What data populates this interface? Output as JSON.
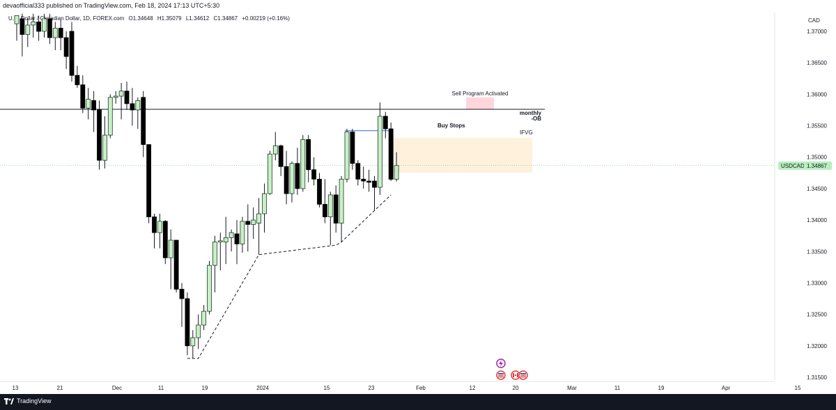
{
  "header": {
    "publisher_line": "devaofficial333 published on TradingView.com, Feb 18, 2024 17:13 UTC+5:30"
  },
  "legend": {
    "symbol_name": "U.S. Dollar / Canadian Dollar, 1D, FOREX.com",
    "open": "O1.34648",
    "high": "H1.35079",
    "low": "L1.34612",
    "close": "C1.34867",
    "change": "+0.00219 (+0.16%)"
  },
  "price_axis": {
    "currency": "CAD",
    "ticks": [
      "1.37000",
      "1.36500",
      "1.36000",
      "1.35500",
      "1.35000",
      "1.34500",
      "1.34000",
      "1.33500",
      "1.33000",
      "1.32500",
      "1.32000",
      "1.31500"
    ],
    "last_price_symbol": "USDCAD",
    "last_price_value": "1.34867"
  },
  "time_axis": {
    "ticks": [
      "13",
      "21",
      "Dec",
      "11",
      "19",
      "2024",
      "15",
      "23",
      "Feb",
      "12",
      "20",
      "Mar",
      "11",
      "19",
      "Apr",
      "15"
    ]
  },
  "annotations": {
    "sell_program": "Sell Program Activated",
    "monthly_ob": "monthly",
    "monthly_ob_suffix": "-OB",
    "buy_stops": "Buy Stops",
    "ifvg": "IFVG"
  },
  "footer": {
    "brand": "TradingView"
  },
  "colors": {
    "bull_body": "#c8f0c8",
    "bull_border": "#1e3a1e",
    "bear_body": "#000000",
    "last_price_bg": "#b8efbf",
    "ifvg_zone": "#fff1dc",
    "sell_zone": "#ffd6dc",
    "footer_bg": "#131722"
  },
  "chart_data": {
    "type": "candlestick",
    "symbol": "USDCAD",
    "interval": "1D",
    "ylim": [
      1.3138,
      1.3728
    ],
    "horizontal_line": 1.3576,
    "last_price": 1.34867,
    "ifvg_zone": [
      1.34755,
      1.35305
    ],
    "sell_zone": [
      1.35765,
      1.3595
    ],
    "buy_stops_level": 1.3542,
    "candles": [
      {
        "d": "Nov 13",
        "o": 1.3712,
        "h": 1.3725,
        "l": 1.3685,
        "c": 1.3725
      },
      {
        "d": "Nov 14",
        "o": 1.372,
        "h": 1.3728,
        "l": 1.366,
        "c": 1.3695
      },
      {
        "d": "Nov 15",
        "o": 1.3695,
        "h": 1.372,
        "l": 1.3675,
        "c": 1.371
      },
      {
        "d": "Nov 16",
        "o": 1.371,
        "h": 1.3728,
        "l": 1.369,
        "c": 1.3715
      },
      {
        "d": "Nov 17",
        "o": 1.3715,
        "h": 1.3725,
        "l": 1.3685,
        "c": 1.37
      },
      {
        "d": "Nov 20",
        "o": 1.37,
        "h": 1.3728,
        "l": 1.369,
        "c": 1.372
      },
      {
        "d": "Nov 21",
        "o": 1.372,
        "h": 1.3728,
        "l": 1.368,
        "c": 1.369
      },
      {
        "d": "Nov 22",
        "o": 1.369,
        "h": 1.3715,
        "l": 1.367,
        "c": 1.3705
      },
      {
        "d": "Nov 23",
        "o": 1.3705,
        "h": 1.3718,
        "l": 1.367,
        "c": 1.369
      },
      {
        "d": "Nov 24",
        "o": 1.369,
        "h": 1.37,
        "l": 1.364,
        "c": 1.366
      },
      {
        "d": "Nov 27",
        "o": 1.37,
        "h": 1.3715,
        "l": 1.362,
        "c": 1.363
      },
      {
        "d": "Nov 28",
        "o": 1.363,
        "h": 1.3645,
        "l": 1.361,
        "c": 1.3615
      },
      {
        "d": "Nov 29",
        "o": 1.3615,
        "h": 1.363,
        "l": 1.357,
        "c": 1.3578
      },
      {
        "d": "Nov 30",
        "o": 1.3578,
        "h": 1.361,
        "l": 1.356,
        "c": 1.3592
      },
      {
        "d": "Dec 1",
        "o": 1.359,
        "h": 1.3605,
        "l": 1.354,
        "c": 1.3575
      },
      {
        "d": "Dec 4",
        "o": 1.3575,
        "h": 1.359,
        "l": 1.348,
        "c": 1.3495
      },
      {
        "d": "Dec 5",
        "o": 1.3495,
        "h": 1.3565,
        "l": 1.3482,
        "c": 1.3535
      },
      {
        "d": "Dec 6",
        "o": 1.3535,
        "h": 1.36,
        "l": 1.353,
        "c": 1.3595
      },
      {
        "d": "Dec 7",
        "o": 1.3595,
        "h": 1.3605,
        "l": 1.3585,
        "c": 1.3597
      },
      {
        "d": "Dec 8",
        "o": 1.3597,
        "h": 1.3618,
        "l": 1.356,
        "c": 1.3605
      },
      {
        "d": "Dec 11",
        "o": 1.3605,
        "h": 1.362,
        "l": 1.3575,
        "c": 1.3585
      },
      {
        "d": "Dec 12",
        "o": 1.3585,
        "h": 1.361,
        "l": 1.355,
        "c": 1.3575
      },
      {
        "d": "Dec 13",
        "o": 1.3575,
        "h": 1.3595,
        "l": 1.3545,
        "c": 1.359
      },
      {
        "d": "Dec 14",
        "o": 1.3595,
        "h": 1.3605,
        "l": 1.35,
        "c": 1.352
      },
      {
        "d": "Dec 15",
        "o": 1.352,
        "h": 1.352,
        "l": 1.3395,
        "c": 1.3405
      },
      {
        "d": "Dec 18",
        "o": 1.3405,
        "h": 1.341,
        "l": 1.3355,
        "c": 1.338
      },
      {
        "d": "Dec 19",
        "o": 1.338,
        "h": 1.341,
        "l": 1.3355,
        "c": 1.3398
      },
      {
        "d": "Dec 20",
        "o": 1.3398,
        "h": 1.34,
        "l": 1.333,
        "c": 1.334
      },
      {
        "d": "Dec 21",
        "o": 1.334,
        "h": 1.3385,
        "l": 1.329,
        "c": 1.3368
      },
      {
        "d": "Dec 22",
        "o": 1.3368,
        "h": 1.3368,
        "l": 1.3285,
        "c": 1.329
      },
      {
        "d": "Dec 26",
        "o": 1.329,
        "h": 1.33,
        "l": 1.323,
        "c": 1.3275
      },
      {
        "d": "Dec 27",
        "o": 1.3275,
        "h": 1.3285,
        "l": 1.3185,
        "c": 1.32
      },
      {
        "d": "Dec 28",
        "o": 1.32,
        "h": 1.3225,
        "l": 1.318,
        "c": 1.3213
      },
      {
        "d": "Dec 29",
        "o": 1.3213,
        "h": 1.325,
        "l": 1.3195,
        "c": 1.3233
      },
      {
        "d": "Jan 1",
        "o": 1.3233,
        "h": 1.3265,
        "l": 1.3225,
        "c": 1.3255
      },
      {
        "d": "Jan 2",
        "o": 1.3255,
        "h": 1.3335,
        "l": 1.325,
        "c": 1.3328
      },
      {
        "d": "Jan 3",
        "o": 1.3328,
        "h": 1.3375,
        "l": 1.3285,
        "c": 1.3365
      },
      {
        "d": "Jan 4",
        "o": 1.3365,
        "h": 1.338,
        "l": 1.332,
        "c": 1.3367
      },
      {
        "d": "Jan 5",
        "o": 1.3365,
        "h": 1.3405,
        "l": 1.333,
        "c": 1.3372
      },
      {
        "d": "Jan 8",
        "o": 1.3372,
        "h": 1.3385,
        "l": 1.335,
        "c": 1.338
      },
      {
        "d": "Jan 9",
        "o": 1.3378,
        "h": 1.34,
        "l": 1.333,
        "c": 1.3362
      },
      {
        "d": "Jan 10",
        "o": 1.3362,
        "h": 1.3405,
        "l": 1.3348,
        "c": 1.3398
      },
      {
        "d": "Jan 11",
        "o": 1.3398,
        "h": 1.3425,
        "l": 1.335,
        "c": 1.3393
      },
      {
        "d": "Jan 12",
        "o": 1.3393,
        "h": 1.342,
        "l": 1.337,
        "c": 1.34
      },
      {
        "d": "Jan 15",
        "o": 1.3395,
        "h": 1.3435,
        "l": 1.3345,
        "c": 1.341
      },
      {
        "d": "Jan 16",
        "o": 1.341,
        "h": 1.3458,
        "l": 1.338,
        "c": 1.3442
      },
      {
        "d": "Jan 17",
        "o": 1.3442,
        "h": 1.351,
        "l": 1.344,
        "c": 1.3505
      },
      {
        "d": "Jan 18",
        "o": 1.3505,
        "h": 1.354,
        "l": 1.3495,
        "c": 1.3518
      },
      {
        "d": "Jan 19",
        "o": 1.3518,
        "h": 1.352,
        "l": 1.347,
        "c": 1.3485
      },
      {
        "d": "Jan 22",
        "o": 1.3485,
        "h": 1.351,
        "l": 1.3425,
        "c": 1.3442
      },
      {
        "d": "Jan 23",
        "o": 1.3442,
        "h": 1.3493,
        "l": 1.3428,
        "c": 1.349
      },
      {
        "d": "Jan 24",
        "o": 1.349,
        "h": 1.3515,
        "l": 1.344,
        "c": 1.345
      },
      {
        "d": "Jan 25",
        "o": 1.345,
        "h": 1.3535,
        "l": 1.3445,
        "c": 1.3528
      },
      {
        "d": "Jan 26",
        "o": 1.3528,
        "h": 1.3535,
        "l": 1.346,
        "c": 1.348
      },
      {
        "d": "Jan 29",
        "o": 1.348,
        "h": 1.35,
        "l": 1.3455,
        "c": 1.3465
      },
      {
        "d": "Jan 30",
        "o": 1.3465,
        "h": 1.3475,
        "l": 1.342,
        "c": 1.3425
      },
      {
        "d": "Jan 31",
        "o": 1.3425,
        "h": 1.3465,
        "l": 1.3395,
        "c": 1.3405
      },
      {
        "d": "Feb 1",
        "o": 1.3405,
        "h": 1.3445,
        "l": 1.336,
        "c": 1.344
      },
      {
        "d": "Feb 2",
        "o": 1.344,
        "h": 1.3455,
        "l": 1.338,
        "c": 1.3395
      },
      {
        "d": "Feb 5",
        "o": 1.3395,
        "h": 1.347,
        "l": 1.3365,
        "c": 1.3465
      },
      {
        "d": "Feb 6",
        "o": 1.3465,
        "h": 1.3545,
        "l": 1.346,
        "c": 1.354
      },
      {
        "d": "Feb 7",
        "o": 1.354,
        "h": 1.3545,
        "l": 1.348,
        "c": 1.349
      },
      {
        "d": "Feb 8",
        "o": 1.349,
        "h": 1.3495,
        "l": 1.3455,
        "c": 1.3465
      },
      {
        "d": "Feb 9",
        "o": 1.3465,
        "h": 1.3485,
        "l": 1.345,
        "c": 1.3462
      },
      {
        "d": "Feb 12",
        "o": 1.3462,
        "h": 1.348,
        "l": 1.3445,
        "c": 1.346
      },
      {
        "d": "Feb 13",
        "o": 1.3462,
        "h": 1.347,
        "l": 1.3415,
        "c": 1.3452
      },
      {
        "d": "Feb 14",
        "o": 1.3452,
        "h": 1.3587,
        "l": 1.344,
        "c": 1.3565
      },
      {
        "d": "Feb 15",
        "o": 1.3565,
        "h": 1.3572,
        "l": 1.353,
        "c": 1.3545
      },
      {
        "d": "Feb 16",
        "o": 1.3545,
        "h": 1.3555,
        "l": 1.3462,
        "c": 1.34648
      },
      {
        "d": "Feb 16",
        "o": 1.34648,
        "h": 1.35079,
        "l": 1.34612,
        "c": 1.34867
      }
    ],
    "dashed_trendline": [
      {
        "d": "Dec 27",
        "p": 1.318
      },
      {
        "d": "Dec 29",
        "p": 1.318
      },
      {
        "d": "Jan 15",
        "p": 1.3345
      },
      {
        "d": "Feb 2",
        "p": 1.336
      },
      {
        "d": "Feb 5",
        "p": 1.3365
      },
      {
        "d": "Feb 16",
        "p": 1.344
      }
    ]
  }
}
